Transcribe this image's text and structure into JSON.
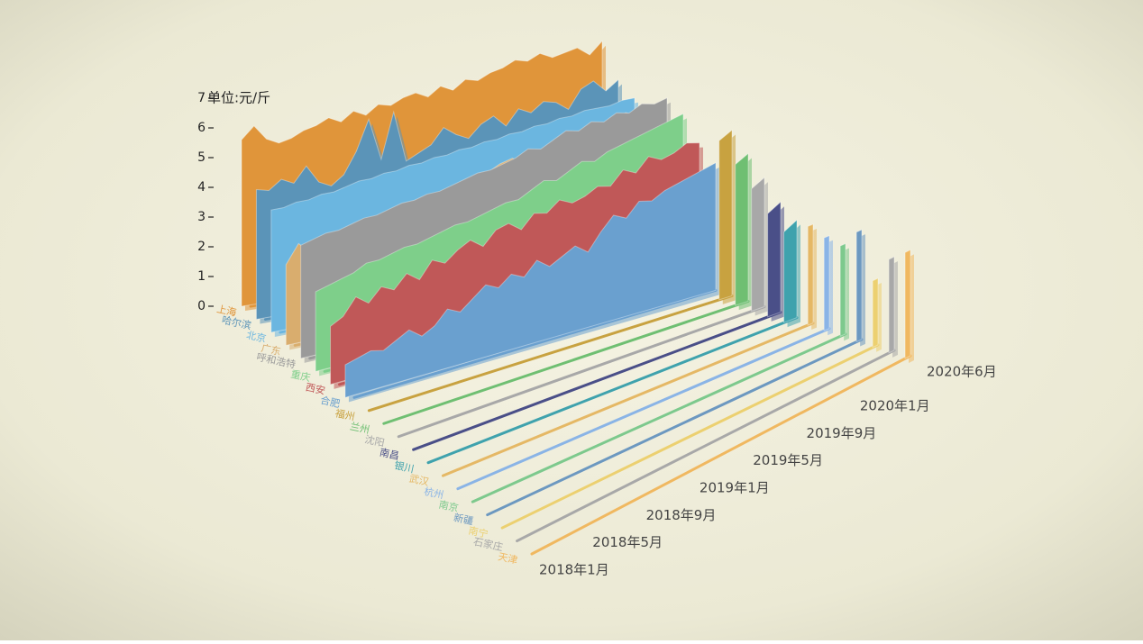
{
  "chart_data": {
    "type": "area3d",
    "y_label": "单位:元/斤",
    "ylim": [
      0,
      7
    ],
    "yticks": [
      0,
      1,
      2,
      3,
      4,
      5,
      6,
      7
    ],
    "categories": [
      "2018年1月",
      null,
      null,
      null,
      "2018年5月",
      null,
      null,
      null,
      "2018年9月",
      null,
      null,
      null,
      "2019年1月",
      null,
      null,
      null,
      "2019年5月",
      null,
      null,
      null,
      "2019年9月",
      null,
      null,
      null,
      "2020年1月",
      null,
      null,
      null,
      null,
      "2020年6月"
    ],
    "series": [
      {
        "name": "上海",
        "color": "#e0953a",
        "values": [
          5.6,
          6.0,
          5.5,
          5.3,
          5.4,
          5.6,
          5.7,
          5.9,
          5.7,
          6.0,
          5.8,
          6.1,
          6.0,
          6.2,
          6.3,
          6.1,
          6.4,
          6.2,
          6.5,
          6.4,
          6.6,
          6.7,
          6.9,
          6.8,
          7.0,
          6.8,
          6.9,
          7.0,
          6.7,
          7.1
        ]
      },
      {
        "name": "哈尔滨",
        "color": "#5b94b8",
        "values": [
          4.3,
          4.2,
          4.5,
          4.3,
          4.8,
          4.2,
          4.0,
          4.3,
          5.0,
          6.0,
          4.6,
          6.1,
          4.4,
          4.6,
          4.8,
          5.3,
          5.0,
          4.8,
          5.2,
          5.4,
          5.0,
          5.5,
          5.3,
          5.6,
          5.5,
          5.2,
          5.8,
          6.0,
          5.6,
          5.9
        ]
      },
      {
        "name": "北京",
        "color": "#6bb6e0",
        "values": [
          4.0,
          4.0,
          4.1,
          4.1,
          4.2,
          4.2,
          4.3,
          4.4,
          4.4,
          4.5,
          4.5,
          4.6,
          4.6,
          4.7,
          4.7,
          4.8,
          4.8,
          4.9,
          4.9,
          5.0,
          5.0,
          5.1,
          5.1,
          5.2,
          5.2,
          5.3,
          5.3,
          5.3,
          5.4,
          5.4
        ]
      },
      {
        "name": "广东",
        "color": "#d9ad6e",
        "values": [
          2.6,
          3.2,
          2.8,
          2.2,
          3.0,
          2.5,
          2.8,
          3.5,
          3.0,
          3.2,
          2.8,
          3.0,
          3.3,
          3.5,
          3.8,
          4.0,
          4.2,
          4.4,
          4.5,
          4.2,
          3.8,
          4.3,
          4.8,
          4.5,
          4.6,
          4.8,
          5.0,
          5.2,
          5.0,
          4.8
        ]
      },
      {
        "name": "呼和浩特",
        "color": "#9a9a9a",
        "values": [
          3.6,
          3.7,
          3.8,
          3.8,
          3.9,
          4.0,
          4.0,
          4.1,
          4.2,
          4.2,
          4.3,
          4.3,
          4.4,
          4.5,
          4.6,
          4.6,
          4.7,
          4.8,
          5.0,
          4.9,
          5.1,
          5.3,
          5.2,
          5.4,
          5.3,
          5.5,
          5.4,
          5.6,
          5.5,
          5.6
        ]
      },
      {
        "name": "重庆",
        "color": "#7ecf8a",
        "values": [
          2.5,
          2.6,
          2.7,
          2.8,
          3.0,
          3.0,
          3.1,
          3.2,
          3.2,
          3.3,
          3.4,
          3.5,
          3.5,
          3.6,
          3.7,
          3.8,
          3.8,
          4.0,
          4.2,
          4.1,
          4.3,
          4.5,
          4.4,
          4.6,
          4.7,
          4.8,
          4.9,
          5.0,
          5.1,
          5.2
        ]
      },
      {
        "name": "西安",
        "color": "#c05858",
        "values": [
          1.8,
          2.0,
          2.5,
          2.2,
          2.6,
          2.4,
          2.8,
          2.5,
          3.0,
          2.8,
          3.1,
          3.3,
          3.0,
          3.4,
          3.5,
          3.2,
          3.6,
          3.5,
          3.8,
          3.6,
          3.7,
          3.9,
          3.8,
          4.2,
          4.0,
          4.4,
          4.2,
          4.3,
          4.5,
          4.4
        ]
      },
      {
        "name": "合肥",
        "color": "#6aa0cf",
        "values": [
          1.0,
          1.1,
          1.2,
          1.1,
          1.3,
          1.5,
          1.2,
          1.4,
          1.8,
          1.6,
          1.9,
          2.2,
          2.0,
          2.3,
          2.1,
          2.5,
          2.2,
          2.4,
          2.6,
          2.3,
          2.8,
          3.2,
          3.0,
          3.4,
          3.3,
          3.5,
          3.6,
          3.7,
          3.8,
          3.9
        ]
      },
      {
        "name": "福州",
        "color": "#c8a240",
        "values": [
          null,
          null,
          null,
          null,
          null,
          null,
          null,
          null,
          null,
          null,
          null,
          null,
          null,
          null,
          null,
          null,
          null,
          null,
          null,
          null,
          null,
          null,
          null,
          null,
          null,
          null,
          null,
          null,
          4.8,
          5.0
        ]
      },
      {
        "name": "兰州",
        "color": "#6fbf72",
        "values": [
          null,
          null,
          null,
          null,
          null,
          null,
          null,
          null,
          null,
          null,
          null,
          null,
          null,
          null,
          null,
          null,
          null,
          null,
          null,
          null,
          null,
          null,
          null,
          null,
          null,
          null,
          null,
          null,
          4.2,
          4.4
        ]
      },
      {
        "name": "沈阳",
        "color": "#a8a8a8",
        "values": [
          null,
          null,
          null,
          null,
          null,
          null,
          null,
          null,
          null,
          null,
          null,
          null,
          null,
          null,
          null,
          null,
          null,
          null,
          null,
          null,
          null,
          null,
          null,
          null,
          null,
          null,
          null,
          null,
          3.6,
          3.8
        ]
      },
      {
        "name": "南昌",
        "color": "#4a4f88",
        "values": [
          null,
          null,
          null,
          null,
          null,
          null,
          null,
          null,
          null,
          null,
          null,
          null,
          null,
          null,
          null,
          null,
          null,
          null,
          null,
          null,
          null,
          null,
          null,
          null,
          null,
          null,
          null,
          null,
          3.0,
          3.2
        ]
      },
      {
        "name": "银川",
        "color": "#3fa2ad",
        "values": [
          null,
          null,
          null,
          null,
          null,
          null,
          null,
          null,
          null,
          null,
          null,
          null,
          null,
          null,
          null,
          null,
          null,
          null,
          null,
          null,
          null,
          null,
          null,
          null,
          null,
          null,
          null,
          null,
          2.6,
          2.8
        ]
      },
      {
        "name": "武汉",
        "color": "#e5b865",
        "values": [
          null,
          null,
          null,
          null,
          null,
          null,
          null,
          null,
          null,
          null,
          null,
          null,
          null,
          null,
          null,
          null,
          null,
          null,
          null,
          null,
          null,
          null,
          null,
          null,
          null,
          null,
          null,
          null,
          null,
          2.8
        ]
      },
      {
        "name": "杭州",
        "color": "#8ab4e6",
        "values": [
          null,
          null,
          null,
          null,
          null,
          null,
          null,
          null,
          null,
          null,
          null,
          null,
          null,
          null,
          null,
          null,
          null,
          null,
          null,
          null,
          null,
          null,
          null,
          null,
          null,
          null,
          null,
          null,
          null,
          2.6
        ]
      },
      {
        "name": "南京",
        "color": "#7dc98d",
        "values": [
          null,
          null,
          null,
          null,
          null,
          null,
          null,
          null,
          null,
          null,
          null,
          null,
          null,
          null,
          null,
          null,
          null,
          null,
          null,
          null,
          null,
          null,
          null,
          null,
          null,
          null,
          null,
          null,
          null,
          2.5
        ]
      },
      {
        "name": "新疆",
        "color": "#6c98c0",
        "values": [
          null,
          null,
          null,
          null,
          null,
          null,
          null,
          null,
          null,
          null,
          null,
          null,
          null,
          null,
          null,
          null,
          null,
          null,
          null,
          null,
          null,
          null,
          null,
          null,
          null,
          null,
          null,
          null,
          null,
          3.0
        ]
      },
      {
        "name": "南宁",
        "color": "#ecd070",
        "values": [
          null,
          null,
          null,
          null,
          null,
          null,
          null,
          null,
          null,
          null,
          null,
          null,
          null,
          null,
          null,
          null,
          null,
          null,
          null,
          null,
          null,
          null,
          null,
          null,
          null,
          null,
          null,
          null,
          null,
          1.8
        ]
      },
      {
        "name": "石家庄",
        "color": "#a8a8a8",
        "values": [
          null,
          null,
          null,
          null,
          null,
          null,
          null,
          null,
          null,
          null,
          null,
          null,
          null,
          null,
          null,
          null,
          null,
          null,
          null,
          null,
          null,
          null,
          null,
          null,
          null,
          null,
          null,
          null,
          null,
          2.5
        ]
      },
      {
        "name": "天津",
        "color": "#f0b860",
        "values": [
          null,
          null,
          null,
          null,
          null,
          null,
          null,
          null,
          null,
          null,
          null,
          null,
          null,
          null,
          null,
          null,
          null,
          null,
          null,
          null,
          null,
          null,
          null,
          null,
          null,
          null,
          null,
          null,
          null,
          2.8
        ]
      }
    ]
  }
}
